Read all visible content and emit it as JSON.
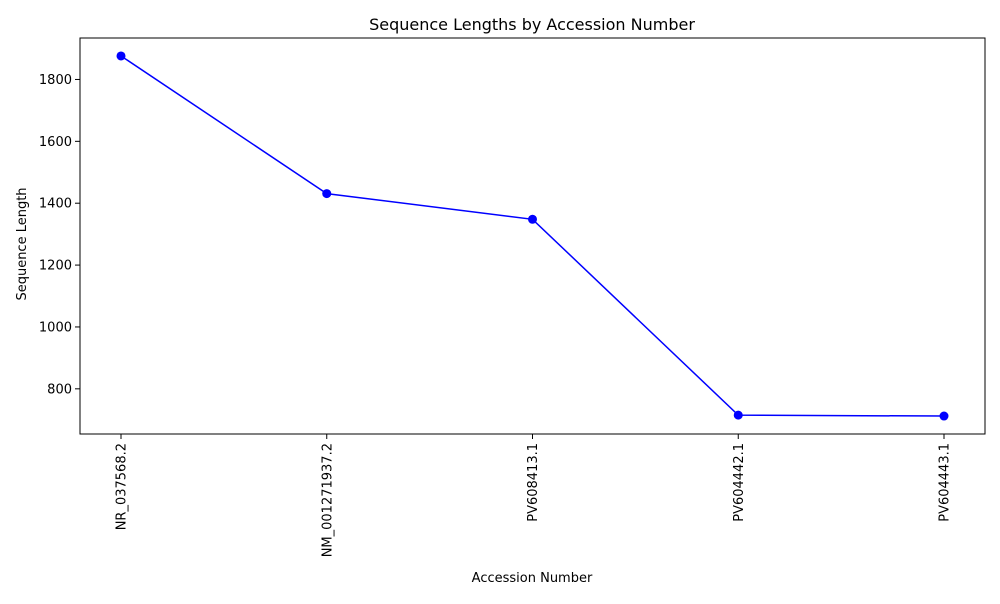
{
  "chart_data": {
    "type": "line",
    "title": "Sequence Lengths by Accession Number",
    "xlabel": "Accession Number",
    "ylabel": "Sequence Length",
    "categories": [
      "NR_037568.2",
      "NM_001271937.2",
      "PV608413.1",
      "PV604442.1",
      "PV604443.1"
    ],
    "series": [
      {
        "values": [
          1876,
          1431,
          1348,
          715,
          712
        ],
        "color": "#0000ff",
        "marker": "circle"
      }
    ],
    "y_ticks": [
      800,
      1000,
      1200,
      1400,
      1600,
      1800
    ],
    "ylim": [
      654,
      1934
    ],
    "grid": false,
    "legend": "none",
    "tick_label_rotation": "vertical"
  }
}
